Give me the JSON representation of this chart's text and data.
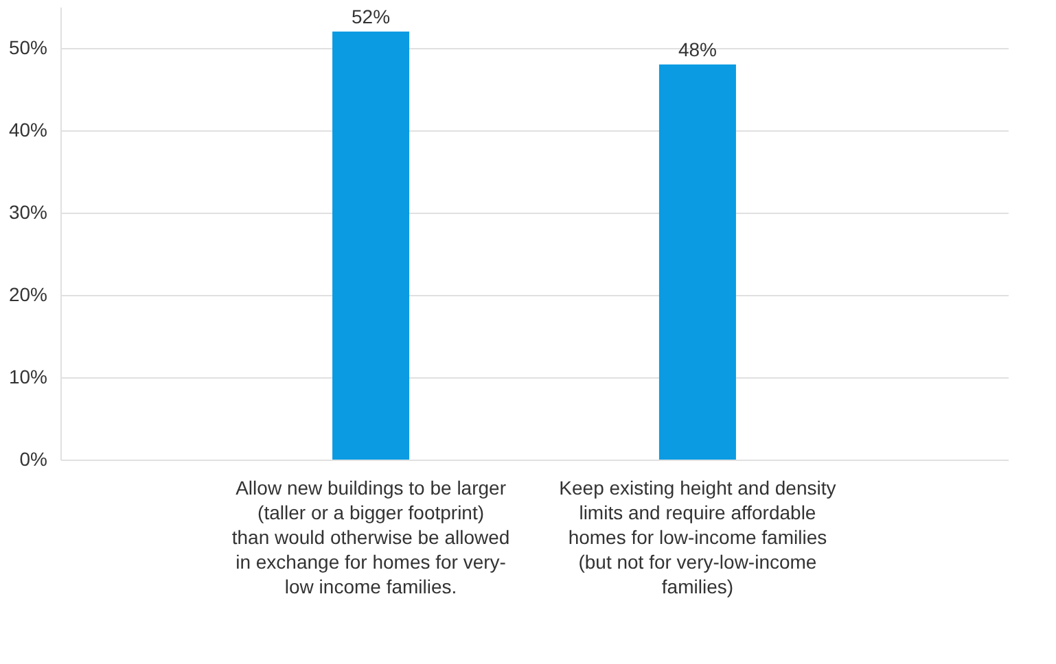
{
  "chart_data": {
    "type": "bar",
    "categories": [
      "Allow new buildings to be larger (taller or a bigger footprint) than would otherwise be allowed in exchange for homes for very-low income families.",
      "Keep existing height and density limits and require affordable homes for low-income families (but not for very-low-income families)"
    ],
    "values": [
      52,
      48
    ],
    "value_labels": [
      "52%",
      "48%"
    ],
    "color": "#0a9be3",
    "ylim": [
      0,
      55
    ],
    "yticks": [
      {
        "value": 0,
        "label": "0%"
      },
      {
        "value": 10,
        "label": "10%"
      },
      {
        "value": 20,
        "label": "20%"
      },
      {
        "value": 30,
        "label": "30%"
      },
      {
        "value": 40,
        "label": "40%"
      },
      {
        "value": 50,
        "label": "50%"
      }
    ],
    "grid": "y"
  }
}
